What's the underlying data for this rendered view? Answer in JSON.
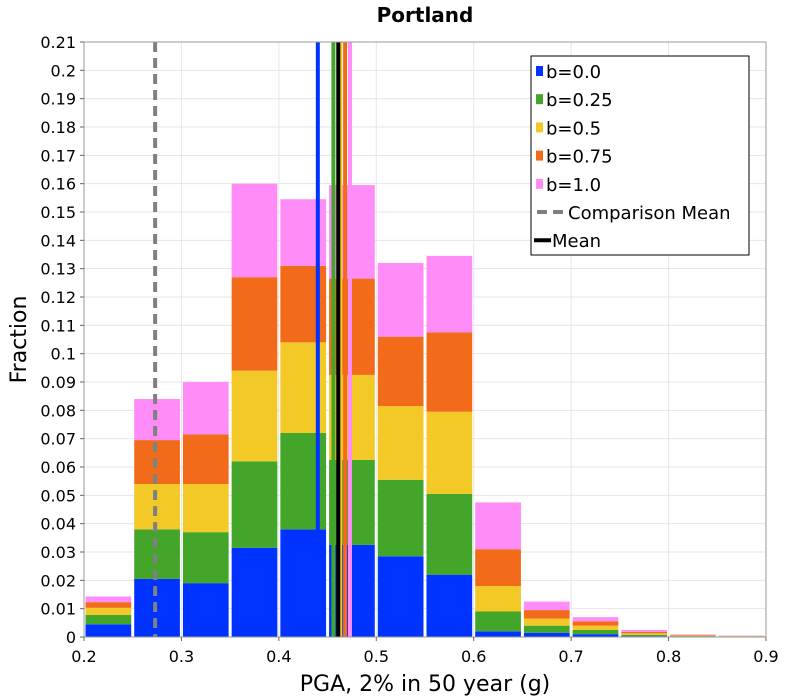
{
  "chart_data": {
    "type": "bar",
    "title": "Portland",
    "xlabel": "PGA, 2% in 50 year (g)",
    "ylabel": "Fraction",
    "xlim": [
      0.2,
      0.9
    ],
    "ylim": [
      0,
      0.21
    ],
    "bin_width": 0.05,
    "stacked": true,
    "grid": true,
    "legend_position": "top-right",
    "x_ticks": [
      "0.2",
      "0.3",
      "0.4",
      "0.5",
      "0.6",
      "0.7",
      "0.8",
      "0.9"
    ],
    "y_ticks": [
      "0",
      "0.01",
      "0.02",
      "0.03",
      "0.04",
      "0.05",
      "0.06",
      "0.07",
      "0.08",
      "0.09",
      "0.1",
      "0.11",
      "0.12",
      "0.13",
      "0.14",
      "0.15",
      "0.16",
      "0.17",
      "0.18",
      "0.19",
      "0.2",
      "0.21"
    ],
    "bins": [
      0.2,
      0.25,
      0.3,
      0.35,
      0.4,
      0.45,
      0.5,
      0.55,
      0.6,
      0.65,
      0.7,
      0.75,
      0.8,
      0.85
    ],
    "series": [
      {
        "name": "b=0.0",
        "color": "#0033ff",
        "values": [
          0.0045,
          0.0205,
          0.019,
          0.0315,
          0.038,
          0.0325,
          0.0285,
          0.022,
          0.002,
          0.0015,
          0.001,
          0.0003,
          0.0001,
          0.0001
        ]
      },
      {
        "name": "b=0.25",
        "color": "#44a52b",
        "values": [
          0.0033,
          0.0175,
          0.018,
          0.0305,
          0.034,
          0.03,
          0.027,
          0.0285,
          0.007,
          0.0025,
          0.0015,
          0.0005,
          0.0002,
          0.0001
        ]
      },
      {
        "name": "b=0.5",
        "color": "#f2c926",
        "values": [
          0.0025,
          0.016,
          0.017,
          0.032,
          0.032,
          0.03,
          0.026,
          0.029,
          0.009,
          0.0025,
          0.0015,
          0.0005,
          0.0002,
          0.0001
        ]
      },
      {
        "name": "b=0.75",
        "color": "#f26b1a",
        "values": [
          0.002,
          0.0155,
          0.0175,
          0.033,
          0.027,
          0.034,
          0.0245,
          0.028,
          0.013,
          0.003,
          0.0015,
          0.0005,
          0.0002,
          0.0001
        ]
      },
      {
        "name": "b=1.0",
        "color": "#ff8cf7",
        "values": [
          0.002,
          0.0145,
          0.0185,
          0.033,
          0.0235,
          0.033,
          0.026,
          0.027,
          0.0165,
          0.003,
          0.0015,
          0.0007,
          0.0002,
          0.0001
        ]
      }
    ],
    "mean_lines": [
      {
        "name": "b=0.0",
        "color": "#0033ff",
        "x": 0.44
      },
      {
        "name": "b=0.25",
        "color": "#44a52b",
        "x": 0.456
      },
      {
        "name": "b=0.5",
        "color": "#f2c926",
        "x": 0.463
      },
      {
        "name": "b=0.75",
        "color": "#f26b1a",
        "x": 0.468
      },
      {
        "name": "b=1.0",
        "color": "#ff8cf7",
        "x": 0.473
      }
    ],
    "comparison_mean": {
      "label": "Comparison Mean",
      "x": 0.273,
      "color": "#808080"
    },
    "mean": {
      "label": "Mean",
      "x": 0.461,
      "color": "#000000"
    }
  }
}
